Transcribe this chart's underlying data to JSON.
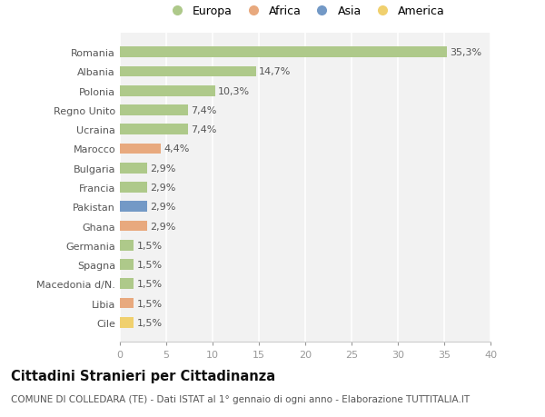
{
  "countries": [
    "Romania",
    "Albania",
    "Polonia",
    "Regno Unito",
    "Ucraina",
    "Marocco",
    "Bulgaria",
    "Francia",
    "Pakistan",
    "Ghana",
    "Germania",
    "Spagna",
    "Macedonia d/N.",
    "Libia",
    "Cile"
  ],
  "values": [
    35.3,
    14.7,
    10.3,
    7.4,
    7.4,
    4.4,
    2.9,
    2.9,
    2.9,
    2.9,
    1.5,
    1.5,
    1.5,
    1.5,
    1.5
  ],
  "labels": [
    "35,3%",
    "14,7%",
    "10,3%",
    "7,4%",
    "7,4%",
    "4,4%",
    "2,9%",
    "2,9%",
    "2,9%",
    "2,9%",
    "1,5%",
    "1,5%",
    "1,5%",
    "1,5%",
    "1,5%"
  ],
  "continents": [
    "Europa",
    "Europa",
    "Europa",
    "Europa",
    "Europa",
    "Africa",
    "Europa",
    "Europa",
    "Asia",
    "Africa",
    "Europa",
    "Europa",
    "Europa",
    "Africa",
    "America"
  ],
  "colors": {
    "Europa": "#aec98a",
    "Africa": "#e8a97e",
    "Asia": "#7399c6",
    "America": "#f0d06e"
  },
  "legend_order": [
    "Europa",
    "Africa",
    "Asia",
    "America"
  ],
  "xlim": [
    0,
    40
  ],
  "xticks": [
    0,
    5,
    10,
    15,
    20,
    25,
    30,
    35,
    40
  ],
  "title": "Cittadini Stranieri per Cittadinanza",
  "subtitle": "COMUNE DI COLLEDARA (TE) - Dati ISTAT al 1° gennaio di ogni anno - Elaborazione TUTTITALIA.IT",
  "bg_color": "#ffffff",
  "plot_bg_color": "#f2f2f2",
  "grid_color": "#ffffff",
  "label_fontsize": 8.0,
  "tick_fontsize": 8.0,
  "title_fontsize": 10.5,
  "subtitle_fontsize": 7.5,
  "bar_height": 0.55
}
